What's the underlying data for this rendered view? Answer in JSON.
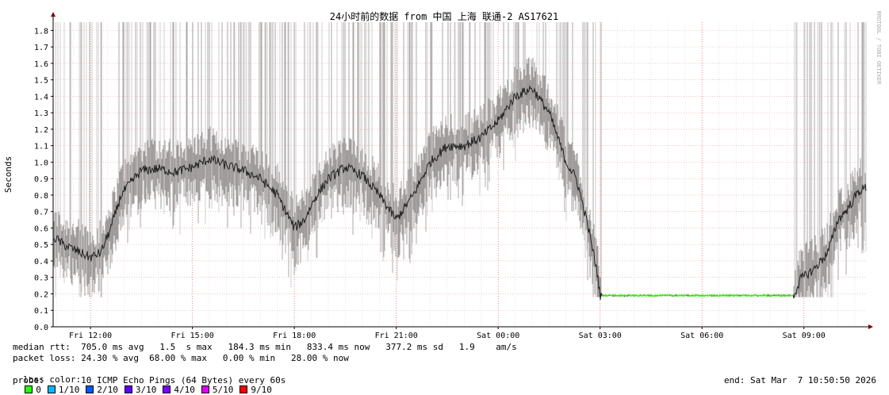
{
  "chart_data": {
    "type": "line",
    "title": "24小时前的数据 from 中国 上海 联通-2 AS17621",
    "ylabel": "Seconds",
    "xlabel": "",
    "watermark": "RRDTOOL / TOBI OETIKER",
    "ylim": [
      0,
      1.85
    ],
    "yticks": [
      0.0,
      0.1,
      0.2,
      0.3,
      0.4,
      0.5,
      0.6,
      0.7,
      0.8,
      0.9,
      1.0,
      1.1,
      1.2,
      1.3,
      1.4,
      1.5,
      1.6,
      1.7,
      1.8
    ],
    "xlim_hours": [
      10.9,
      34.85
    ],
    "xticks": [
      {
        "label": "Fri 12:00",
        "h": 12
      },
      {
        "label": "Fri 15:00",
        "h": 15
      },
      {
        "label": "Fri 18:00",
        "h": 18
      },
      {
        "label": "Fri 21:00",
        "h": 21
      },
      {
        "label": "Sat 00:00",
        "h": 24
      },
      {
        "label": "Sat 03:00",
        "h": 27
      },
      {
        "label": "Sat 06:00",
        "h": 30
      },
      {
        "label": "Sat 09:00",
        "h": 33
      }
    ],
    "grid": true,
    "series": [
      {
        "name": "median rtt",
        "points": [
          [
            10.9,
            0.55
          ],
          [
            11.2,
            0.5
          ],
          [
            11.5,
            0.47
          ],
          [
            11.8,
            0.44
          ],
          [
            12.0,
            0.42
          ],
          [
            12.3,
            0.45
          ],
          [
            12.6,
            0.6
          ],
          [
            12.9,
            0.8
          ],
          [
            13.2,
            0.88
          ],
          [
            13.5,
            0.95
          ],
          [
            14.0,
            0.96
          ],
          [
            14.5,
            0.94
          ],
          [
            15.0,
            0.97
          ],
          [
            15.5,
            1.02
          ],
          [
            16.0,
            0.98
          ],
          [
            16.5,
            0.95
          ],
          [
            17.0,
            0.9
          ],
          [
            17.5,
            0.8
          ],
          [
            18.0,
            0.6
          ],
          [
            18.3,
            0.65
          ],
          [
            18.6,
            0.78
          ],
          [
            19.0,
            0.9
          ],
          [
            19.5,
            0.97
          ],
          [
            20.0,
            0.92
          ],
          [
            20.5,
            0.8
          ],
          [
            21.0,
            0.65
          ],
          [
            21.5,
            0.8
          ],
          [
            22.0,
            1.0
          ],
          [
            22.5,
            1.1
          ],
          [
            23.0,
            1.1
          ],
          [
            23.5,
            1.15
          ],
          [
            24.0,
            1.25
          ],
          [
            24.5,
            1.4
          ],
          [
            25.0,
            1.45
          ],
          [
            25.5,
            1.3
          ],
          [
            26.0,
            1.0
          ],
          [
            26.3,
            0.9
          ],
          [
            26.6,
            0.65
          ],
          [
            26.9,
            0.35
          ],
          [
            27.0,
            0.19
          ],
          [
            27.5,
            0.19
          ],
          [
            28.0,
            0.19
          ],
          [
            29.0,
            0.19
          ],
          [
            30.0,
            0.19
          ],
          [
            31.0,
            0.19
          ],
          [
            32.0,
            0.19
          ],
          [
            32.7,
            0.19
          ],
          [
            32.9,
            0.29
          ],
          [
            33.3,
            0.35
          ],
          [
            33.7,
            0.45
          ],
          [
            34.0,
            0.65
          ],
          [
            34.3,
            0.72
          ],
          [
            34.6,
            0.82
          ],
          [
            34.85,
            0.85
          ]
        ]
      }
    ]
  },
  "legend": {
    "median_rtt": "median rtt:  705.0 ms avg   1.5  s max   184.3 ms min   833.4 ms now   377.2 ms sd   1.9    am/s",
    "packet_loss": "packet loss: 24.30 % avg  68.00 % max   0.00 % min   28.00 % now",
    "loss_color_label": "loss color:",
    "loss_colors": [
      {
        "label": "0",
        "color": "#26ff00"
      },
      {
        "label": "1/10",
        "color": "#00b8ff"
      },
      {
        "label": "2/10",
        "color": "#0059ff"
      },
      {
        "label": "3/10",
        "color": "#5e00ff"
      },
      {
        "label": "4/10",
        "color": "#7e00ff"
      },
      {
        "label": "5/10",
        "color": "#dd00ff"
      },
      {
        "label": "9/10",
        "color": "#ff0000"
      }
    ],
    "probe": "probe:       10 ICMP Echo Pings (64 Bytes) every 60s",
    "end": "end: Sat Mar  7 10:50:50 2026"
  }
}
